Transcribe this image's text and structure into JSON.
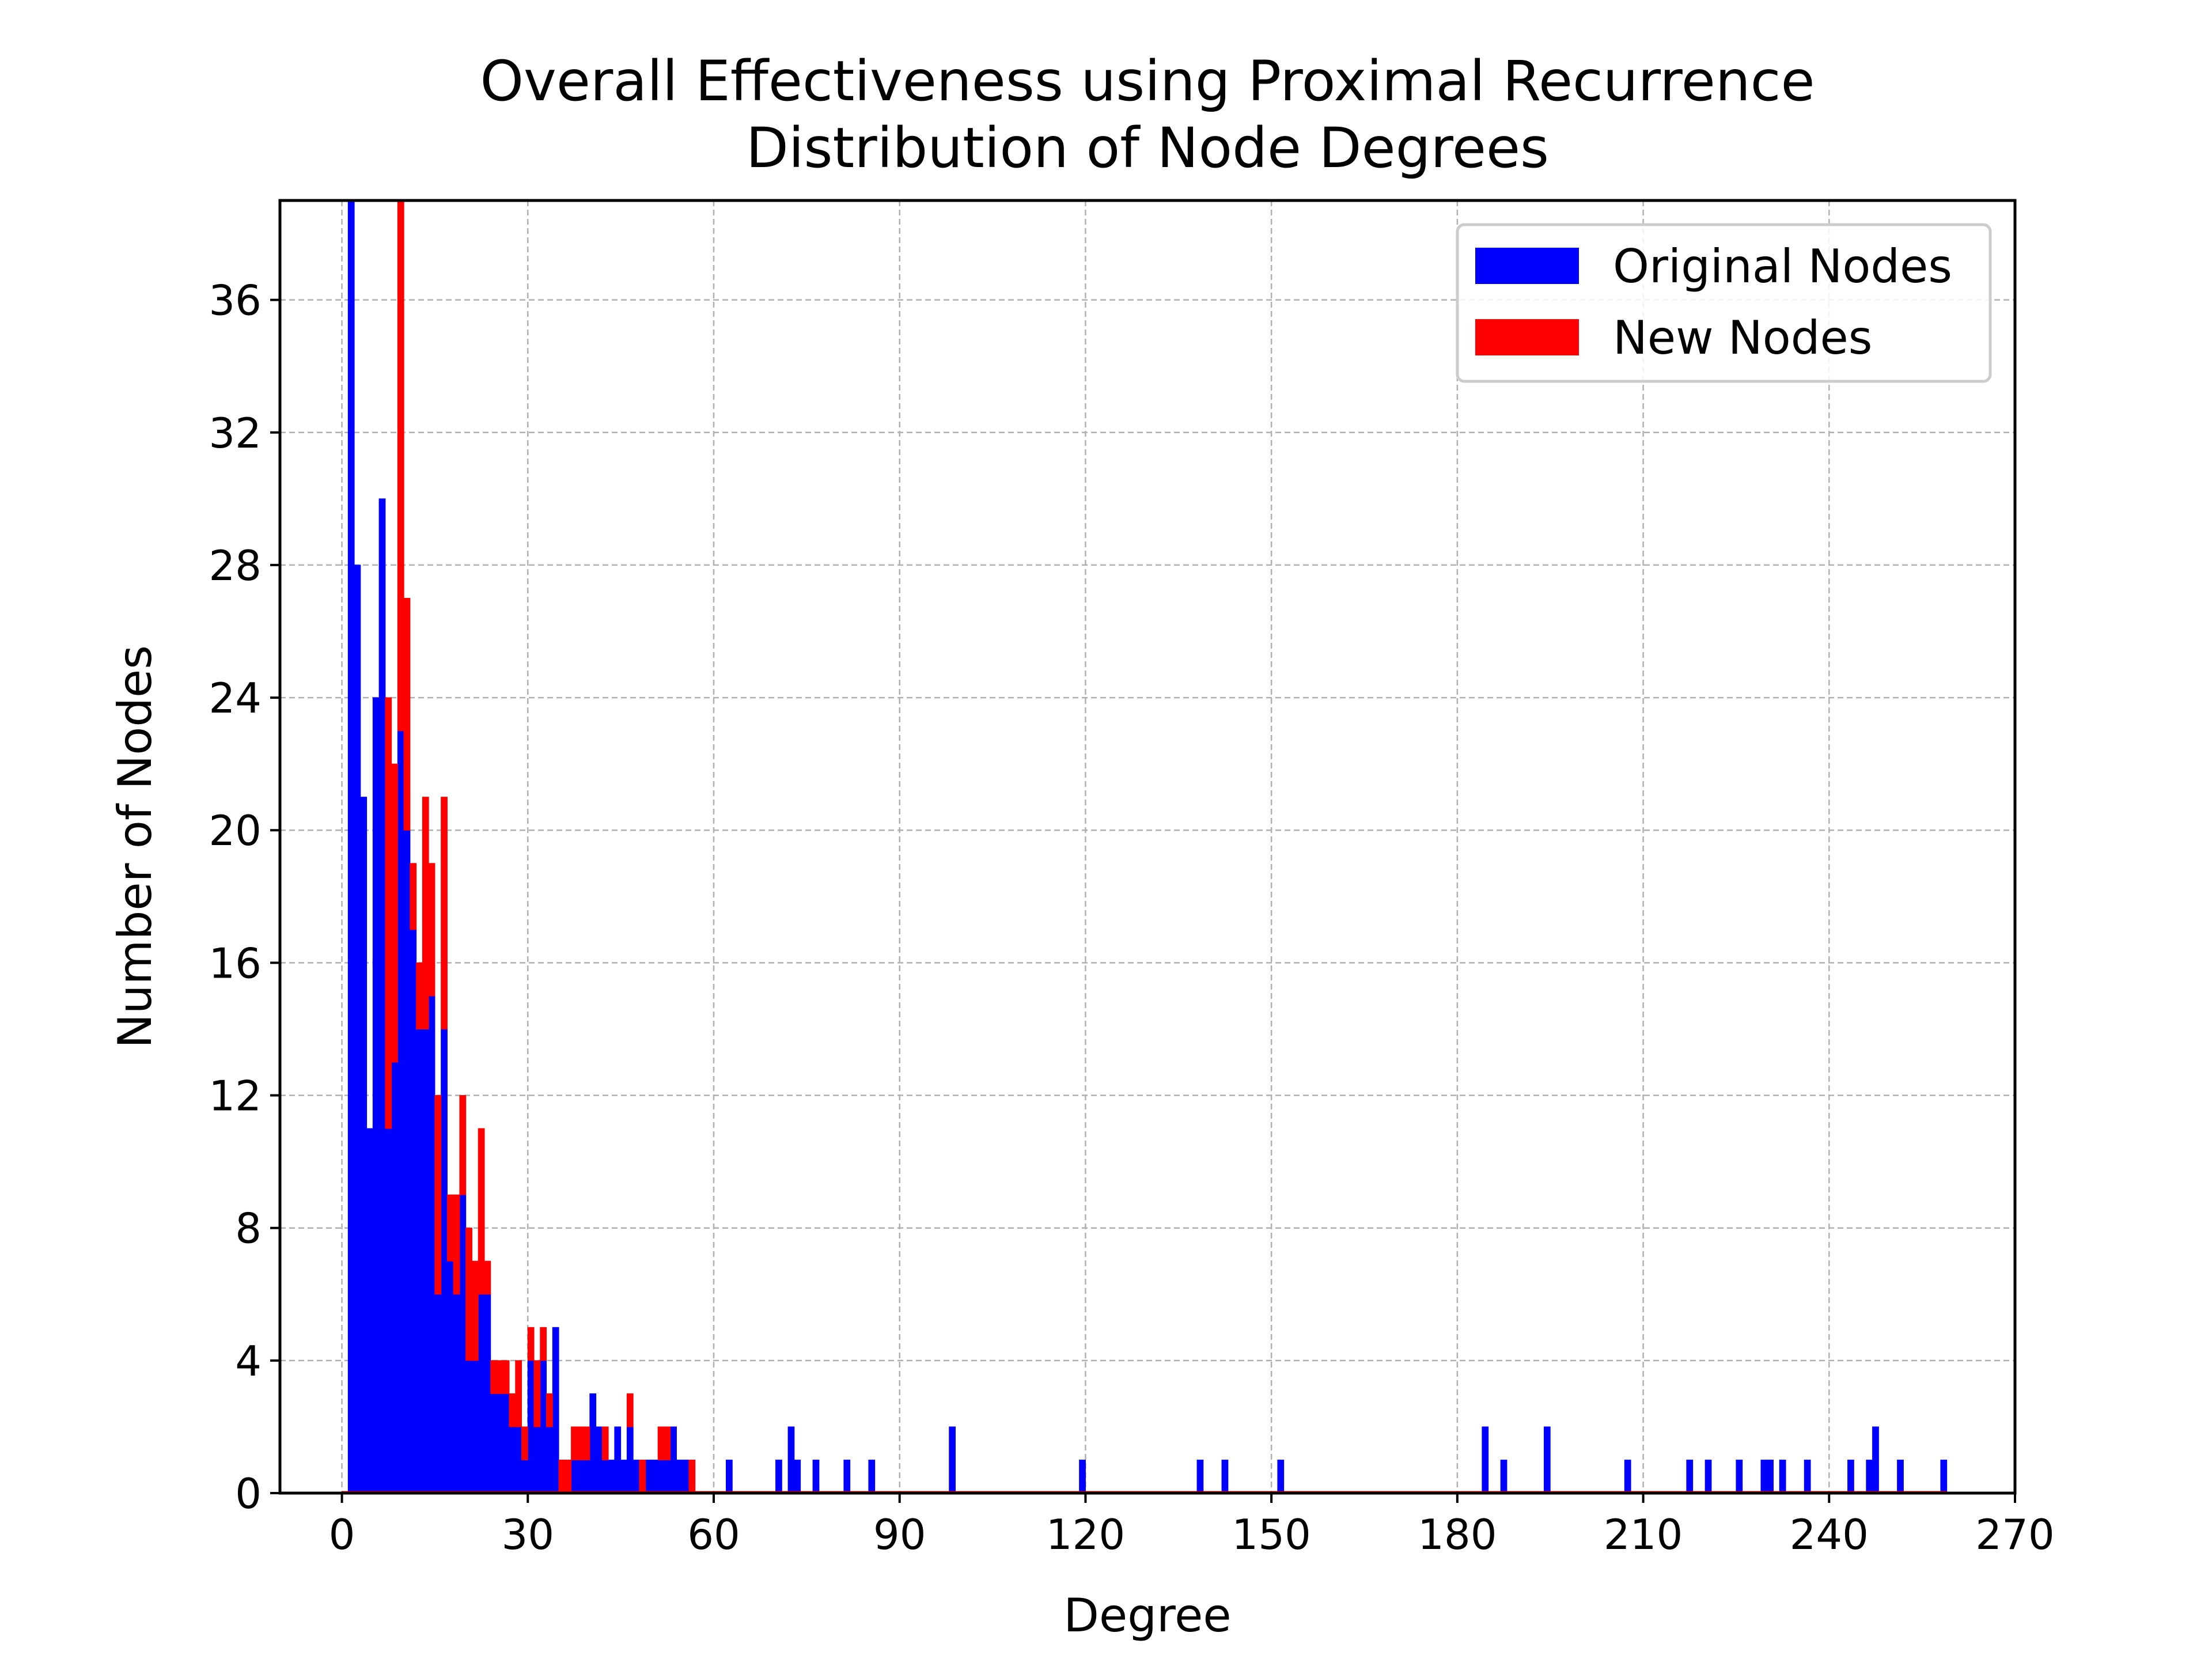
{
  "chart_data": {
    "type": "bar",
    "title": "Overall Effectiveness using Proximal Recurrence",
    "subtitle": "Distribution of Node Degrees",
    "xlabel": "Degree",
    "ylabel": "Number of Nodes",
    "xlim": [
      -10,
      270
    ],
    "ylim": [
      0,
      39
    ],
    "xticks": [
      "0",
      "30",
      "60",
      "90",
      "120",
      "150",
      "180",
      "210",
      "240",
      "270"
    ],
    "yticks": [
      "0",
      "4",
      "8",
      "12",
      "16",
      "20",
      "24",
      "28",
      "32",
      "36"
    ],
    "grid": true,
    "legend_position": "top-right",
    "stacked": true,
    "series": [
      {
        "name": "Original Nodes",
        "color": "#0000ff",
        "points": [
          [
            1,
            39
          ],
          [
            2,
            28
          ],
          [
            3,
            21
          ],
          [
            4,
            11
          ],
          [
            5,
            24
          ],
          [
            6,
            30
          ],
          [
            7,
            11
          ],
          [
            8,
            13
          ],
          [
            9,
            23
          ],
          [
            10,
            20
          ],
          [
            11,
            17
          ],
          [
            12,
            14
          ],
          [
            13,
            14
          ],
          [
            14,
            15
          ],
          [
            15,
            6
          ],
          [
            16,
            14
          ],
          [
            17,
            7
          ],
          [
            18,
            6
          ],
          [
            19,
            9
          ],
          [
            20,
            4
          ],
          [
            21,
            4
          ],
          [
            22,
            6
          ],
          [
            23,
            6
          ],
          [
            24,
            3
          ],
          [
            25,
            3
          ],
          [
            26,
            3
          ],
          [
            27,
            2
          ],
          [
            28,
            2
          ],
          [
            29,
            1
          ],
          [
            30,
            4
          ],
          [
            31,
            2
          ],
          [
            32,
            4
          ],
          [
            33,
            2
          ],
          [
            34,
            5
          ],
          [
            37,
            1
          ],
          [
            38,
            1
          ],
          [
            39,
            1
          ],
          [
            40,
            3
          ],
          [
            41,
            2
          ],
          [
            42,
            1
          ],
          [
            43,
            1
          ],
          [
            44,
            2
          ],
          [
            45,
            1
          ],
          [
            46,
            2
          ],
          [
            47,
            1
          ],
          [
            49,
            1
          ],
          [
            50,
            1
          ],
          [
            51,
            1
          ],
          [
            52,
            1
          ],
          [
            53,
            2
          ],
          [
            54,
            1
          ],
          [
            55,
            1
          ],
          [
            62,
            1
          ],
          [
            70,
            1
          ],
          [
            72,
            2
          ],
          [
            73,
            1
          ],
          [
            76,
            1
          ],
          [
            81,
            1
          ],
          [
            85,
            1
          ],
          [
            98,
            2
          ],
          [
            119,
            1
          ],
          [
            138,
            1
          ],
          [
            142,
            1
          ],
          [
            151,
            1
          ],
          [
            184,
            2
          ],
          [
            187,
            1
          ],
          [
            194,
            2
          ],
          [
            207,
            1
          ],
          [
            217,
            1
          ],
          [
            220,
            1
          ],
          [
            225,
            1
          ],
          [
            229,
            1
          ],
          [
            230,
            1
          ],
          [
            232,
            1
          ],
          [
            236,
            1
          ],
          [
            243,
            1
          ],
          [
            246,
            1
          ],
          [
            247,
            2
          ],
          [
            251,
            1
          ],
          [
            258,
            1
          ]
        ]
      },
      {
        "name": "New Nodes",
        "color": "#ff0000",
        "points": [
          [
            7,
            13
          ],
          [
            8,
            9
          ],
          [
            9,
            16
          ],
          [
            10,
            7
          ],
          [
            11,
            2
          ],
          [
            12,
            2
          ],
          [
            13,
            7
          ],
          [
            14,
            4
          ],
          [
            15,
            6
          ],
          [
            16,
            7
          ],
          [
            17,
            2
          ],
          [
            18,
            3
          ],
          [
            19,
            3
          ],
          [
            20,
            4
          ],
          [
            21,
            3
          ],
          [
            22,
            5
          ],
          [
            23,
            1
          ],
          [
            24,
            1
          ],
          [
            25,
            1
          ],
          [
            26,
            1
          ],
          [
            27,
            1
          ],
          [
            28,
            2
          ],
          [
            29,
            1
          ],
          [
            30,
            1
          ],
          [
            31,
            2
          ],
          [
            32,
            1
          ],
          [
            33,
            1
          ],
          [
            35,
            1
          ],
          [
            36,
            1
          ],
          [
            37,
            1
          ],
          [
            38,
            1
          ],
          [
            39,
            1
          ],
          [
            42,
            1
          ],
          [
            46,
            1
          ],
          [
            48,
            1
          ],
          [
            51,
            1
          ],
          [
            52,
            1
          ],
          [
            56,
            1
          ]
        ]
      }
    ]
  }
}
